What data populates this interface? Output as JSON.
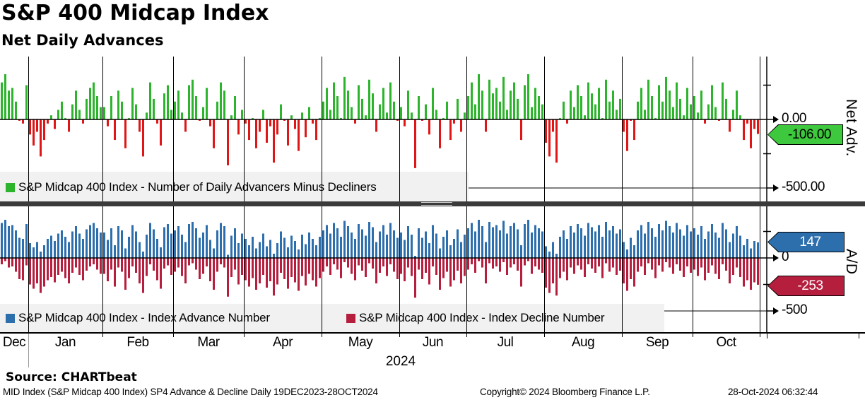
{
  "title": "S&P 400 Midcap Index",
  "subtitle": "Net Daily Advances",
  "colors": {
    "net_advancer_green": "#2CB42C",
    "net_decliner_red": "#E01616",
    "advance_blue": "#2D6FAD",
    "decline_crimson": "#B61E3E",
    "badge_green": "#3DC83D",
    "legend_bg": "#F1F1F1",
    "separator": "#3B3B3B",
    "grid": "#000000"
  },
  "top_panel": {
    "axis_title": "Net Adv.",
    "tick_labels": {
      "zero": "0.00",
      "minus500": "-500.00"
    },
    "badge_label": "-106.00",
    "legend_label": "S&P Midcap 400 Index - Number of Daily Advancers Minus Decliners"
  },
  "bottom_panel": {
    "axis_title": "A/D",
    "tick_labels": {
      "zero": "0",
      "minus500": "-500"
    },
    "advance_badge_label": "147",
    "decline_badge_label": "-253",
    "legend_advance": "S&P Midcap 400 Index - Index Advance Number",
    "legend_decline": "S&P Midcap 400 Index - Index Decline Number"
  },
  "x_axis": {
    "year_label": "2024",
    "months": [
      {
        "label": "Dec",
        "days": 8
      },
      {
        "label": "Jan",
        "days": 21
      },
      {
        "label": "Feb",
        "days": 20
      },
      {
        "label": "Mar",
        "days": 20
      },
      {
        "label": "Apr",
        "days": 22
      },
      {
        "label": "May",
        "days": 22
      },
      {
        "label": "Jun",
        "days": 19
      },
      {
        "label": "Jul",
        "days": 22
      },
      {
        "label": "Aug",
        "days": 22
      },
      {
        "label": "Sep",
        "days": 20
      },
      {
        "label": "Oct",
        "days": 19
      }
    ]
  },
  "footer": {
    "source": "Source: CHARTbeat",
    "description": "MID Index (S&P Midcap 400 Index) SP4 Advance & Decline  Daily 19DEC2023-28OCT2024",
    "copyright": "Copyright© 2024 Bloomberg Finance L.P.",
    "timestamp": "28-Oct-2024 06:32:44"
  },
  "chart_data": [
    {
      "type": "bar",
      "title": "Net Daily Advances",
      "series_name": "S&P Midcap 400 Index - Number of Daily Advancers Minus Decliners",
      "x_range": "Daily 19DEC2023-28OCT2024",
      "ylim": [
        -600,
        470
      ],
      "yticks": [
        0,
        -500
      ],
      "last_value": -106.0,
      "values": [
        270,
        330,
        210,
        230,
        130,
        -10,
        -30,
        250,
        -110,
        -190,
        -90,
        -270,
        -150,
        -30,
        30,
        -70,
        70,
        130,
        10,
        -90,
        110,
        210,
        70,
        -30,
        150,
        230,
        270,
        170,
        90,
        90,
        -50,
        170,
        -150,
        210,
        130,
        -210,
        10,
        230,
        110,
        -90,
        -270,
        50,
        270,
        150,
        -30,
        -190,
        190,
        250,
        70,
        130,
        210,
        50,
        -90,
        250,
        290,
        170,
        -10,
        90,
        230,
        -50,
        -210,
        130,
        270,
        210,
        -335,
        30,
        170,
        -110,
        70,
        -30,
        -150,
        10,
        -210,
        -90,
        70,
        -170,
        -50,
        -315,
        -110,
        110,
        -10,
        -190,
        30,
        -70,
        -230,
        50,
        -130,
        90,
        -30,
        -150,
        10,
        130,
        230,
        70,
        270,
        170,
        10,
        310,
        210,
        90,
        -30,
        250,
        150,
        30,
        290,
        190,
        -90,
        110,
        230,
        50,
        270,
        130,
        -10,
        90,
        -50,
        210,
        50,
        -355,
        170,
        -10,
        110,
        -110,
        230,
        70,
        -210,
        10,
        130,
        -150,
        -30,
        150,
        -90,
        50,
        170,
        270,
        110,
        330,
        210,
        -90,
        290,
        190,
        230,
        130,
        310,
        70,
        210,
        270,
        150,
        -150,
        250,
        330,
        90,
        230,
        170,
        110,
        -170,
        -270,
        -90,
        -315,
        10,
        130,
        -30,
        210,
        90,
        250,
        170,
        30,
        270,
        190,
        110,
        230,
        10,
        290,
        130,
        210,
        70,
        150,
        -90,
        -230,
        -10,
        -150,
        130,
        230,
        70,
        290,
        170,
        10,
        250,
        130,
        310,
        210,
        90,
        270,
        150,
        30,
        230,
        110,
        170,
        50,
        210,
        -30,
        110,
        250,
        90,
        -10,
        270,
        150,
        -90,
        70,
        210,
        30,
        -150,
        -30,
        -210,
        -70,
        -106
      ]
    },
    {
      "type": "bar",
      "title": "Advance / Decline",
      "x_range": "Daily 19DEC2023-28OCT2024",
      "ylim": [
        -700,
        490
      ],
      "yticks": [
        0,
        -500
      ],
      "series": [
        {
          "name": "S&P Midcap 400 Index - Index Advance Number",
          "last_value": 147,
          "values": [
            330,
            360,
            300,
            310,
            260,
            190,
            180,
            320,
            140,
            100,
            150,
            60,
            120,
            180,
            210,
            160,
            230,
            260,
            200,
            150,
            250,
            300,
            230,
            180,
            270,
            310,
            330,
            280,
            240,
            240,
            170,
            280,
            120,
            300,
            260,
            90,
            200,
            310,
            250,
            150,
            60,
            220,
            330,
            270,
            180,
            100,
            290,
            320,
            230,
            260,
            300,
            220,
            150,
            320,
            340,
            280,
            190,
            240,
            310,
            170,
            90,
            260,
            330,
            300,
            30,
            210,
            280,
            140,
            230,
            180,
            120,
            200,
            90,
            150,
            230,
            110,
            170,
            40,
            140,
            250,
            190,
            100,
            210,
            160,
            80,
            220,
            130,
            240,
            180,
            120,
            200,
            260,
            310,
            230,
            330,
            280,
            200,
            350,
            300,
            240,
            180,
            320,
            270,
            210,
            340,
            290,
            150,
            250,
            310,
            220,
            330,
            260,
            190,
            240,
            170,
            300,
            220,
            20,
            280,
            190,
            250,
            140,
            310,
            230,
            90,
            200,
            260,
            120,
            180,
            270,
            150,
            220,
            280,
            330,
            250,
            360,
            300,
            150,
            340,
            290,
            310,
            260,
            350,
            230,
            300,
            330,
            270,
            120,
            320,
            360,
            240,
            310,
            280,
            250,
            110,
            60,
            150,
            40,
            200,
            260,
            180,
            300,
            240,
            320,
            280,
            210,
            330,
            290,
            250,
            310,
            200,
            340,
            260,
            300,
            230,
            270,
            150,
            80,
            190,
            120,
            260,
            310,
            230,
            340,
            280,
            200,
            320,
            260,
            350,
            300,
            240,
            330,
            270,
            210,
            310,
            250,
            280,
            220,
            300,
            180,
            250,
            320,
            240,
            190,
            330,
            270,
            150,
            230,
            300,
            210,
            120,
            180,
            90,
            160,
            147
          ]
        },
        {
          "name": "S&P Midcap 400 Index - Index Decline Number",
          "last_value": -253,
          "values": [
            -60,
            -30,
            -90,
            -80,
            -130,
            -200,
            -210,
            -70,
            -250,
            -290,
            -240,
            -330,
            -270,
            -210,
            -180,
            -230,
            -160,
            -130,
            -190,
            -240,
            -140,
            -90,
            -160,
            -210,
            -120,
            -80,
            -60,
            -110,
            -150,
            -150,
            -220,
            -110,
            -270,
            -90,
            -130,
            -300,
            -190,
            -80,
            -140,
            -240,
            -330,
            -170,
            -60,
            -120,
            -210,
            -290,
            -100,
            -70,
            -160,
            -130,
            -90,
            -170,
            -240,
            -70,
            -50,
            -110,
            -200,
            -150,
            -80,
            -220,
            -300,
            -130,
            -60,
            -90,
            -365,
            -180,
            -110,
            -250,
            -160,
            -210,
            -270,
            -190,
            -300,
            -240,
            -160,
            -280,
            -220,
            -355,
            -250,
            -140,
            -200,
            -290,
            -180,
            -230,
            -310,
            -170,
            -260,
            -150,
            -210,
            -270,
            -190,
            -130,
            -80,
            -160,
            -60,
            -110,
            -190,
            -40,
            -90,
            -150,
            -210,
            -70,
            -120,
            -180,
            -50,
            -100,
            -240,
            -140,
            -80,
            -170,
            -60,
            -130,
            -200,
            -150,
            -220,
            -90,
            -170,
            -375,
            -110,
            -200,
            -140,
            -250,
            -80,
            -160,
            -300,
            -190,
            -130,
            -270,
            -210,
            -120,
            -240,
            -170,
            -110,
            -60,
            -140,
            -30,
            -90,
            -240,
            -50,
            -100,
            -80,
            -130,
            -40,
            -160,
            -90,
            -60,
            -120,
            -270,
            -70,
            -30,
            -150,
            -80,
            -110,
            -140,
            -280,
            -330,
            -240,
            -355,
            -190,
            -130,
            -210,
            -90,
            -150,
            -70,
            -110,
            -180,
            -60,
            -100,
            -140,
            -80,
            -190,
            -50,
            -130,
            -90,
            -160,
            -120,
            -240,
            -310,
            -200,
            -270,
            -130,
            -80,
            -160,
            -50,
            -110,
            -190,
            -70,
            -130,
            -40,
            -90,
            -150,
            -60,
            -120,
            -180,
            -80,
            -140,
            -110,
            -170,
            -90,
            -210,
            -140,
            -70,
            -150,
            -200,
            -60,
            -120,
            -240,
            -160,
            -90,
            -180,
            -270,
            -210,
            -300,
            -230,
            -253
          ]
        }
      ]
    }
  ]
}
